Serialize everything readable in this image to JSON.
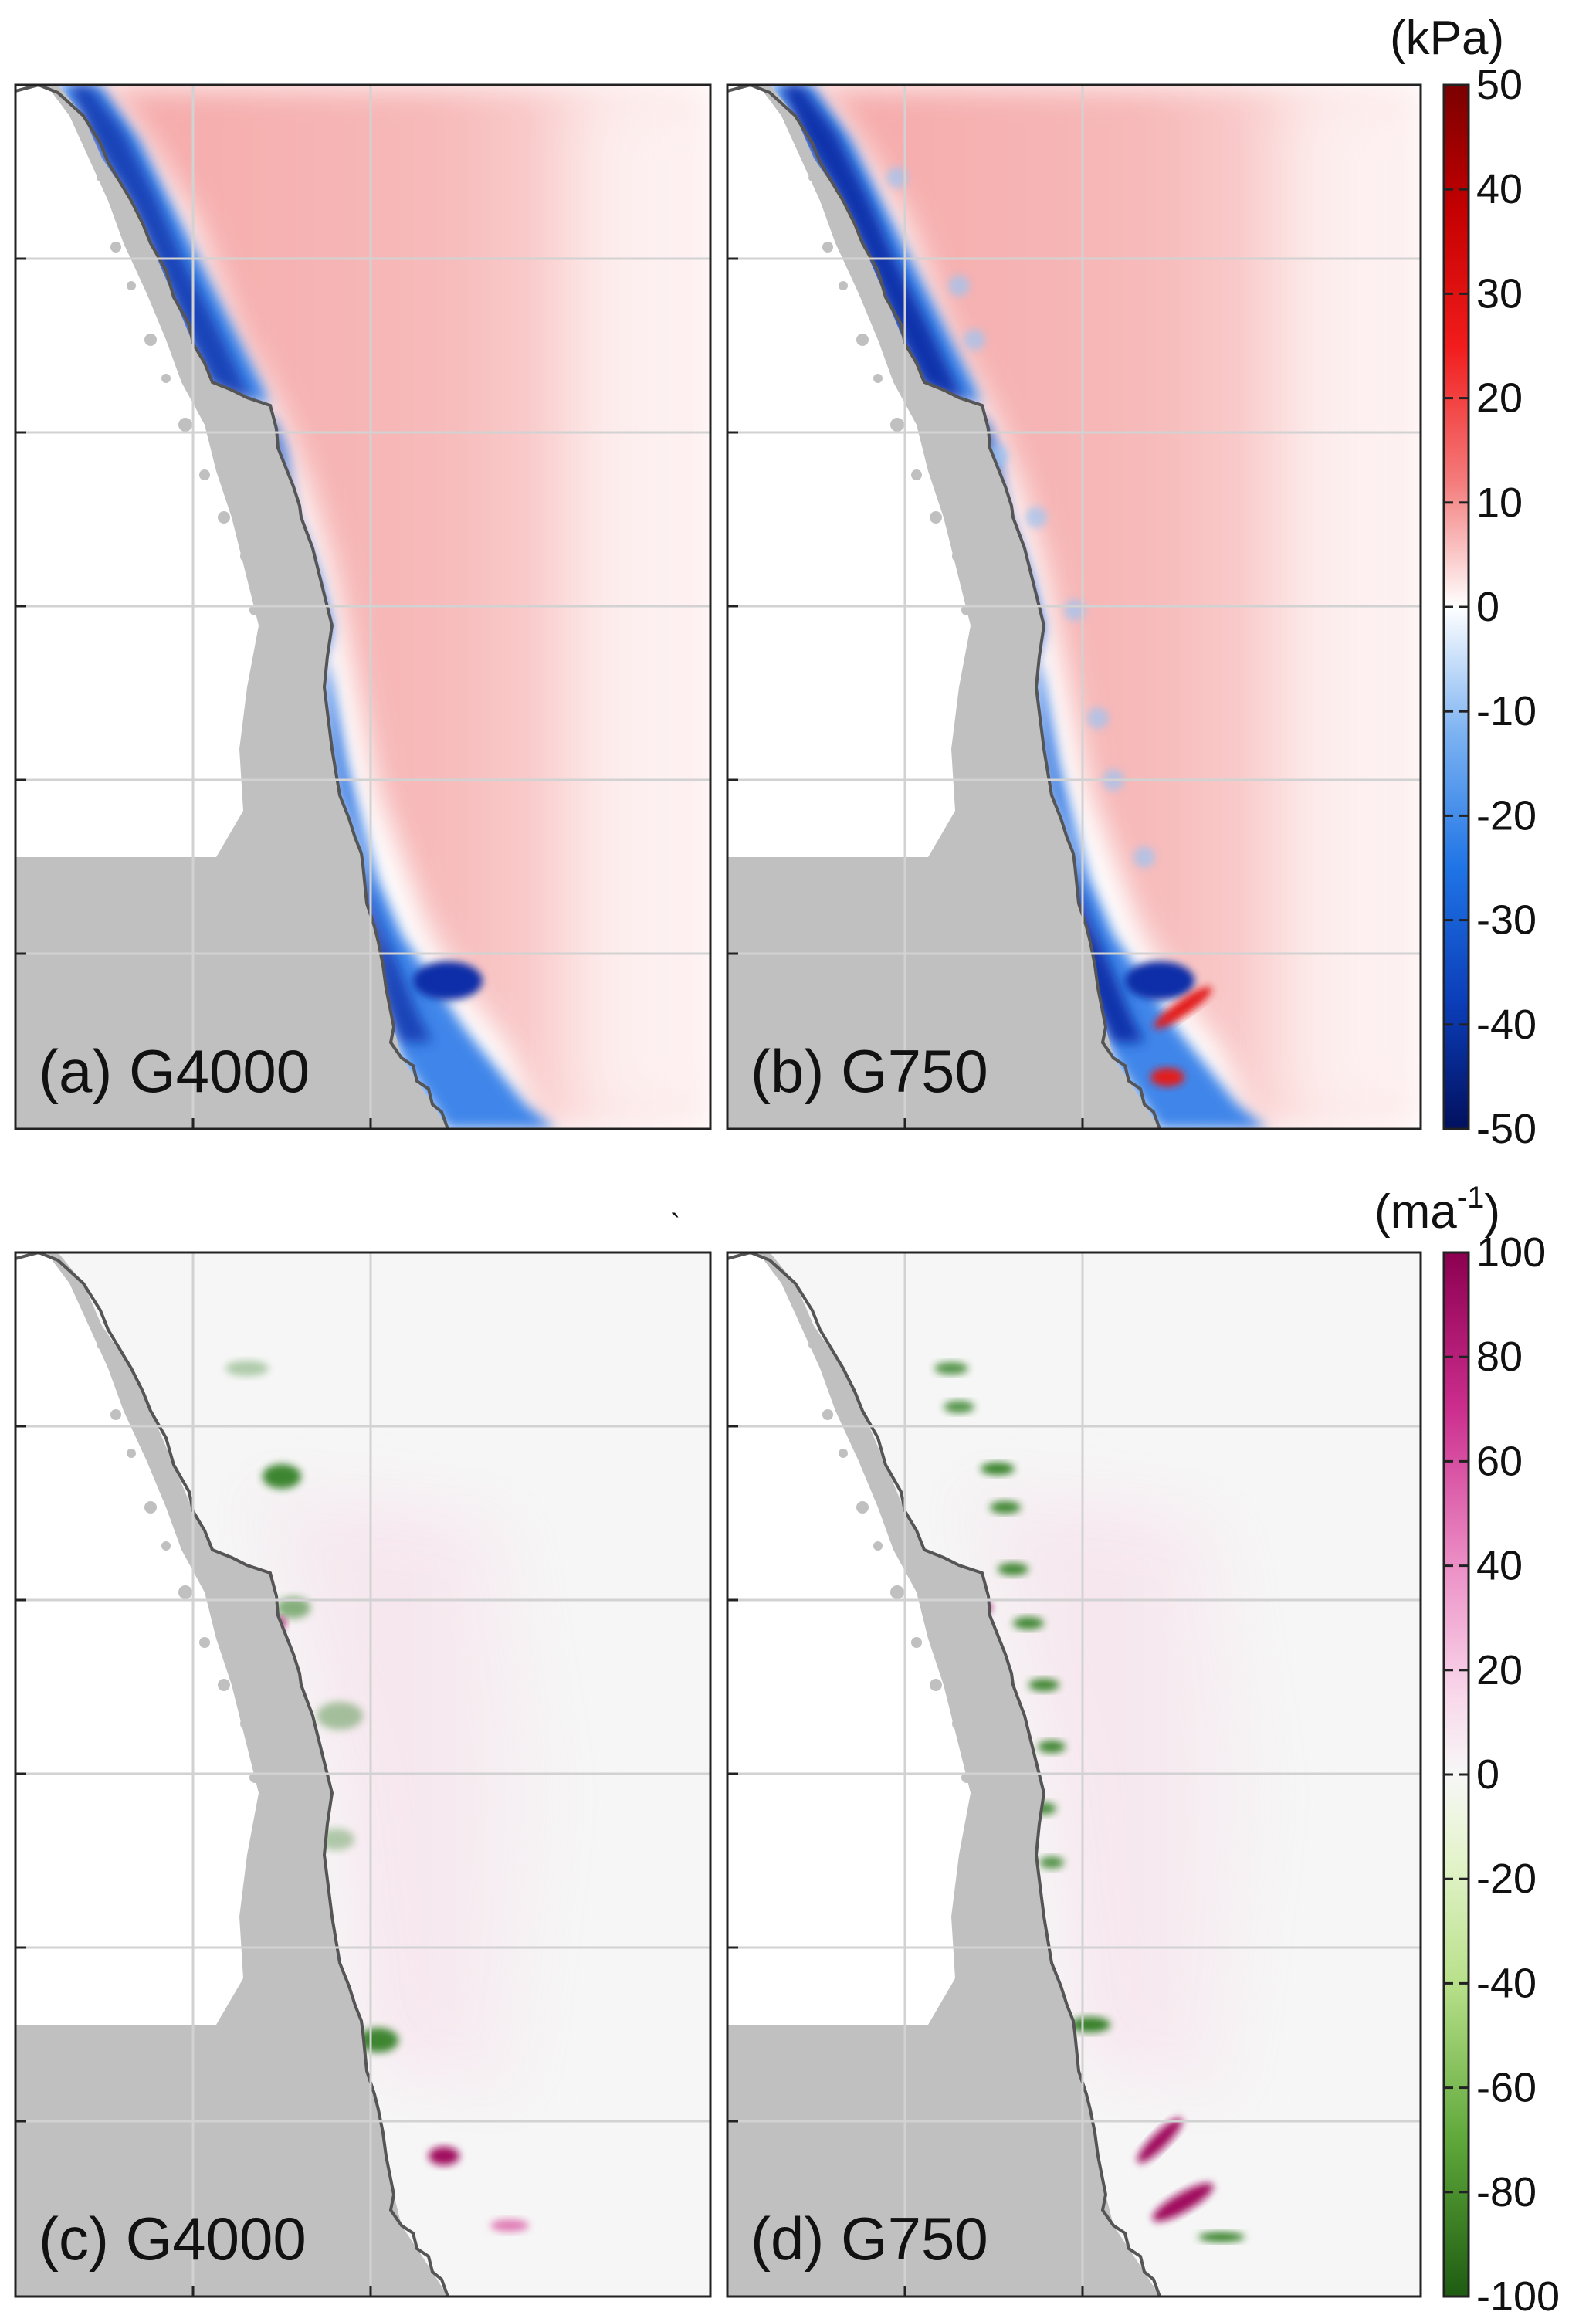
{
  "chart_data": [
    {
      "type": "heatmap",
      "panel": "(a) G4000",
      "quantity_unit": "(kPa)",
      "colorbar_ticks": [
        50,
        40,
        30,
        20,
        10,
        0,
        -10,
        -20,
        -30,
        -40,
        -50
      ],
      "clim": [
        -50,
        50
      ],
      "colormap": "blue-white-red",
      "description_values": {
        "coastal_band_min": -45,
        "inland_band_max": 12
      }
    },
    {
      "type": "heatmap",
      "panel": "(b) G750",
      "quantity_unit": "(kPa)",
      "colorbar_ticks": [
        50,
        40,
        30,
        20,
        10,
        0,
        -10,
        -20,
        -30,
        -40,
        -50
      ],
      "clim": [
        -50,
        50
      ],
      "colormap": "blue-white-red",
      "description_values": {
        "coastal_band_min": -50,
        "inland_band_max": 12
      }
    },
    {
      "type": "heatmap",
      "panel": "(c) G4000",
      "quantity_unit": "(ma⁻¹)",
      "colorbar_ticks": [
        100,
        80,
        60,
        40,
        20,
        0,
        -20,
        -40,
        -60,
        -80,
        -100
      ],
      "clim": [
        -100,
        100
      ],
      "colormap": "green-white-magenta"
    },
    {
      "type": "heatmap",
      "panel": "(d) G750",
      "quantity_unit": "(ma⁻¹)",
      "colorbar_ticks": [
        100,
        80,
        60,
        40,
        20,
        0,
        -20,
        -40,
        -60,
        -80,
        -100
      ],
      "clim": [
        -100,
        100
      ],
      "colormap": "green-white-magenta"
    }
  ],
  "labels": {
    "panel_a": "(a) G4000",
    "panel_b": "(b) G750",
    "panel_c": "(c) G4000",
    "panel_d": "(d) G750",
    "unit_top": "(kPa)",
    "unit_bottom_base": "(ma",
    "unit_bottom_sup": "-1",
    "unit_bottom_close": ")",
    "stray_mark": "`"
  },
  "colors": {
    "land": "#c0c0c0",
    "coastline": "#555555",
    "grid": "#d2d2d2",
    "neg_strong": "#0a2ea8",
    "neg_mid": "#3f86ea",
    "pos_mid": "#f6b1b1",
    "green_strong": "#2c7a1c",
    "magenta_strong": "#a0105e"
  },
  "colorbar_top": [
    "50",
    "40",
    "30",
    "20",
    "10",
    "0",
    "-10",
    "-20",
    "-30",
    "-40",
    "-50"
  ],
  "colorbar_bottom": [
    "100",
    "80",
    "60",
    "40",
    "20",
    "0",
    "-20",
    "-40",
    "-60",
    "-80",
    "-100"
  ]
}
